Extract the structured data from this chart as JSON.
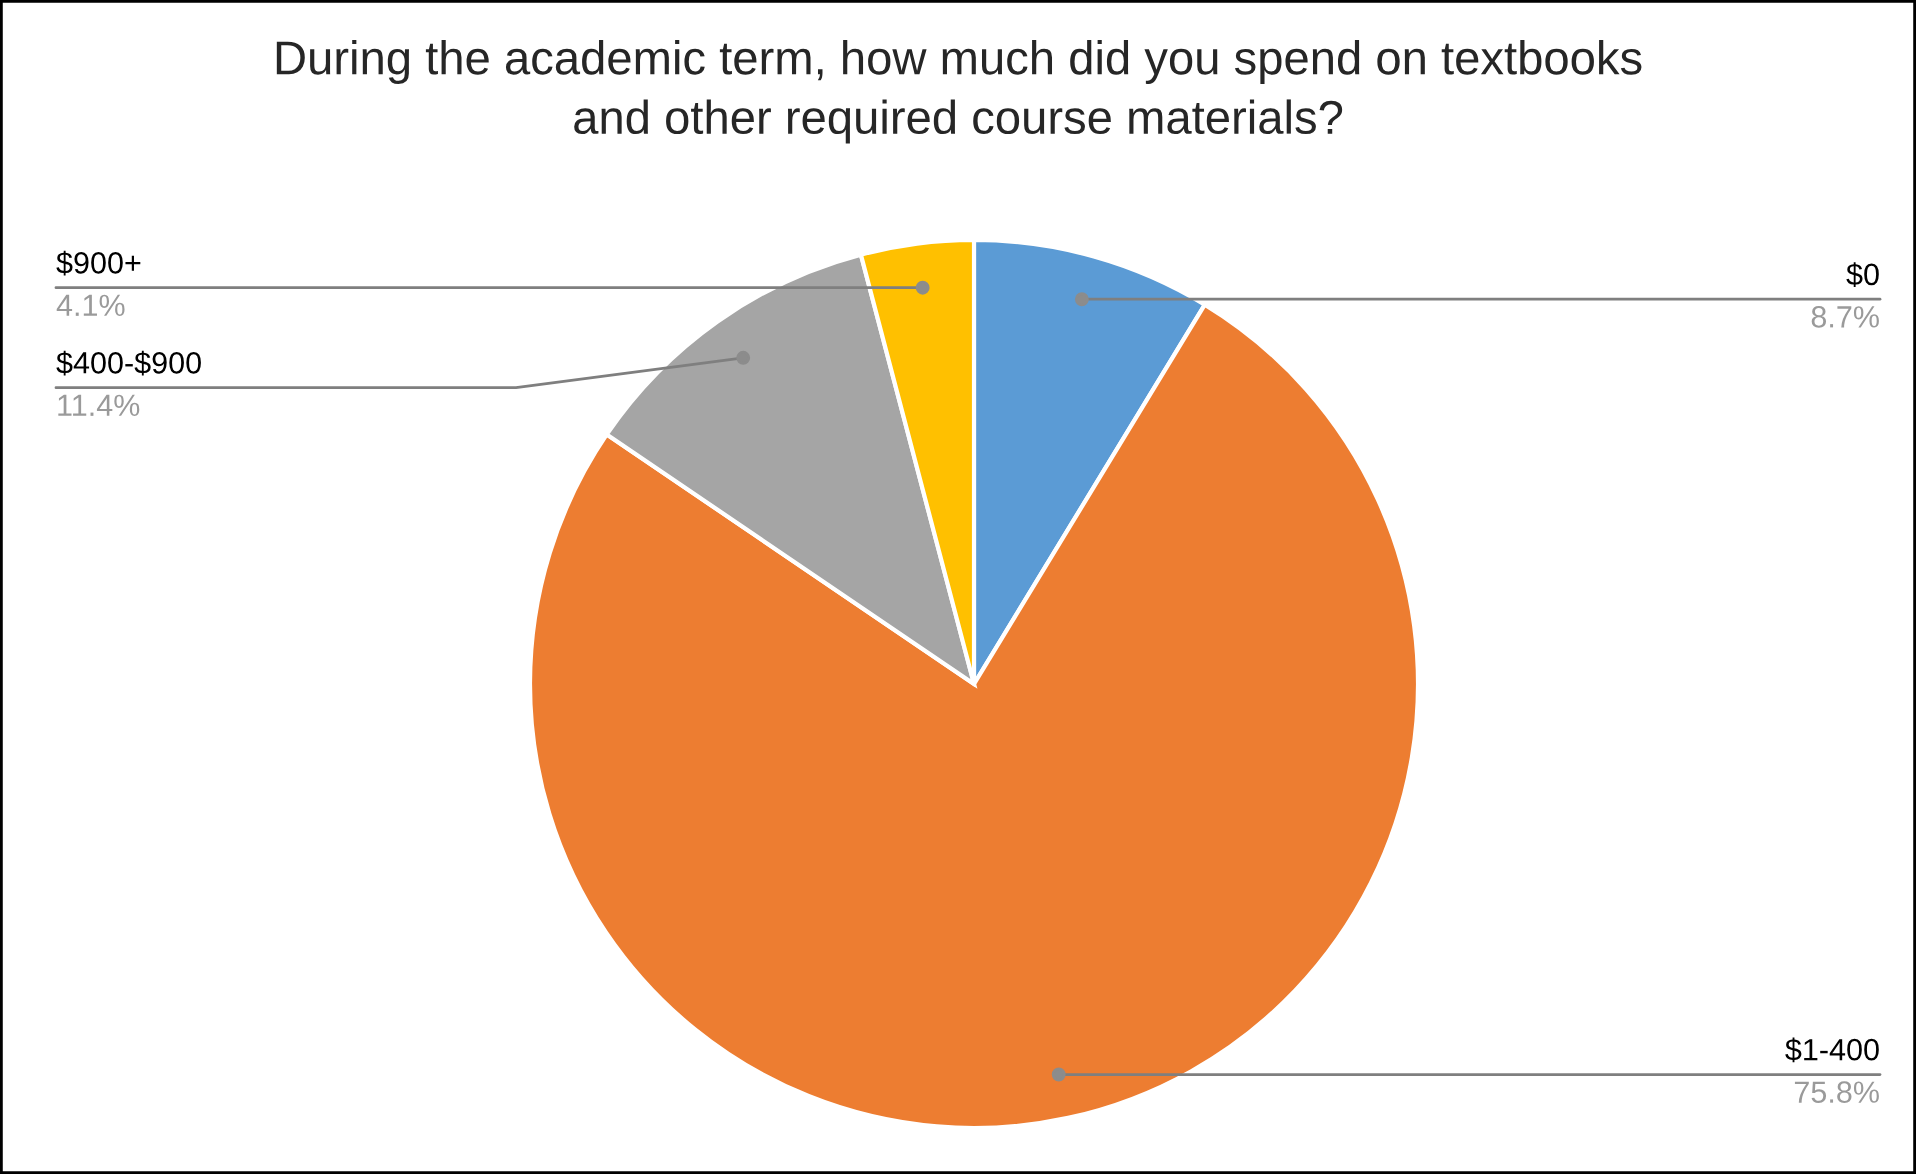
{
  "chart_data": {
    "type": "pie",
    "title": "During the academic term, how much did you spend on textbooks\nand other required course materials?",
    "categories": [
      "$0",
      "$1-400",
      "$400-$900",
      "$900+"
    ],
    "values": [
      8.7,
      75.8,
      11.4,
      4.1
    ],
    "value_labels": [
      "8.7%",
      "75.8%",
      "11.4%",
      "4.1%"
    ],
    "colors": [
      "#5b9bd5",
      "#ed7d31",
      "#a5a5a5",
      "#ffc000"
    ],
    "legend": false
  }
}
